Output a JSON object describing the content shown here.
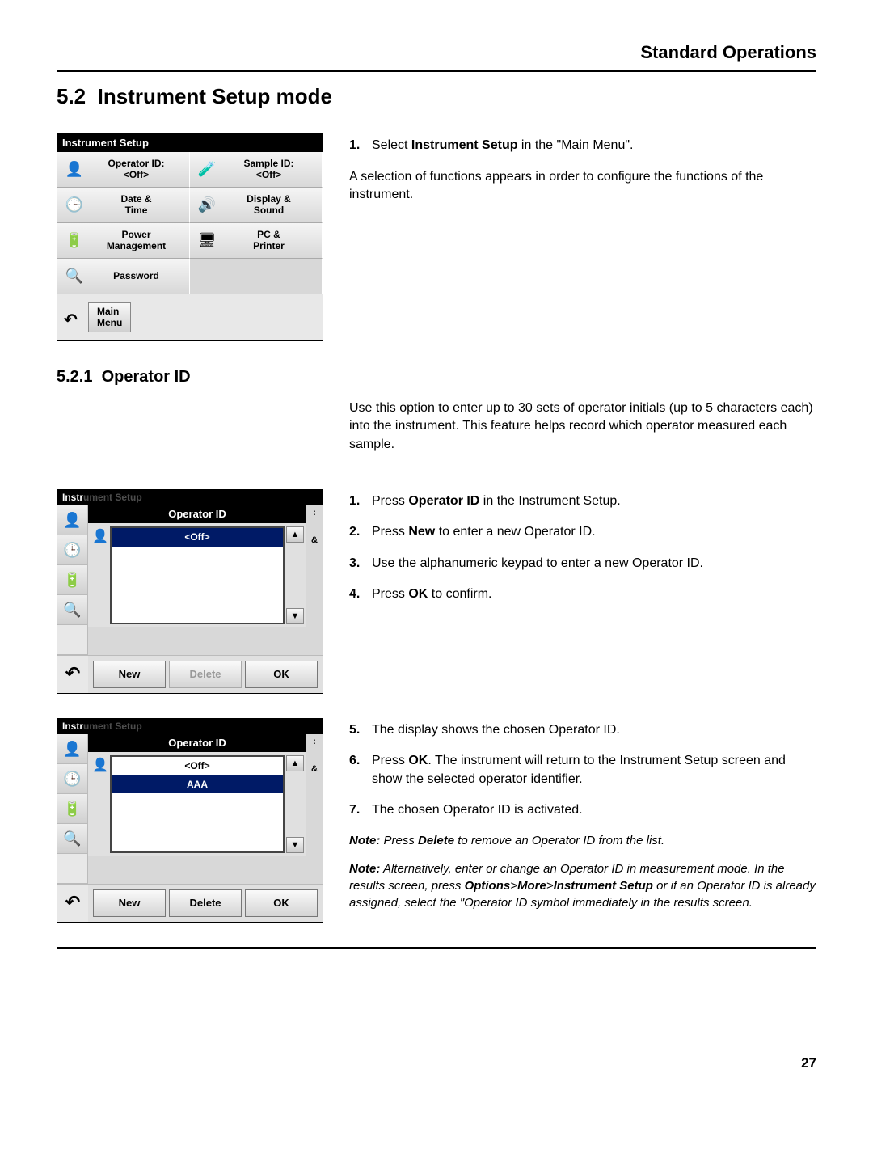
{
  "header": {
    "title": "Standard Operations"
  },
  "section": {
    "num": "5.2",
    "title": "Instrument Setup mode"
  },
  "subsection": {
    "num": "5.2.1",
    "title": "Operator ID"
  },
  "setup": {
    "scr_title": "Instrument Setup",
    "cells": [
      {
        "icon": "👤",
        "line1": "Operator ID:",
        "line2": "<Off>"
      },
      {
        "icon": "🧪",
        "line1": "Sample ID:",
        "line2": "<Off>"
      },
      {
        "icon": "🕒",
        "line1": "Date &",
        "line2": "Time"
      },
      {
        "icon": "🔊",
        "line1": "Display &",
        "line2": "Sound"
      },
      {
        "icon": "🔋",
        "line1": "Power",
        "line2": "Management"
      },
      {
        "icon": "🖥",
        "line1": "PC &",
        "line2": "Printer"
      },
      {
        "icon": "🔍",
        "line1": "Password",
        "line2": ""
      }
    ],
    "back_icon": "↶",
    "main_menu_l1": "Main",
    "main_menu_l2": "Menu"
  },
  "step1": {
    "prefix": "Select ",
    "bold": "Instrument Setup",
    "suffix": " in the \"Main Menu\"."
  },
  "para1": "A selection of functions appears in order to configure the functions of the instrument.",
  "intro": "Use this option to enter up to 30 sets of operator initials (up to 5 characters each) into the instrument. This feature helps record which operator measured each sample.",
  "dlg": {
    "frame_title_prefix": "Instr",
    "frame_title_rest": "ument Setup",
    "title": "Operator ID",
    "off_item": "<Off>",
    "aaa_item": "AAA",
    "new": "New",
    "delete": "Delete",
    "ok": "OK",
    "side_partial_top": ":",
    "side_partial_amp": "&",
    "avatar": "👤",
    "up": "▲",
    "down": "▼"
  },
  "side_icons": [
    "👤",
    "🕒",
    "🔋",
    "🔍"
  ],
  "steps_a": [
    {
      "n": "1.",
      "t1": "Press ",
      "b": "Operator ID",
      "t2": " in the Instrument Setup."
    },
    {
      "n": "2.",
      "t1": "Press ",
      "b": "New",
      "t2": " to enter a new Operator ID."
    },
    {
      "n": "3.",
      "t1": "Use the alphanumeric keypad to enter a new Operator ID.",
      "b": "",
      "t2": ""
    },
    {
      "n": "4.",
      "t1": "Press ",
      "b": "OK",
      "t2": " to confirm."
    }
  ],
  "steps_b": [
    {
      "n": "5.",
      "t1": "The display shows the chosen Operator ID.",
      "b": "",
      "t2": ""
    },
    {
      "n": "6.",
      "t1": "Press ",
      "b": "OK",
      "t2": ". The instrument will return to the Instrument Setup screen and show the selected operator identifier."
    },
    {
      "n": "7.",
      "t1": "The chosen Operator ID is activated.",
      "b": "",
      "t2": ""
    }
  ],
  "note1": {
    "label": "Note:",
    "pre": " Press ",
    "b": "Delete",
    "post": " to remove an Operator ID from the list."
  },
  "note2": {
    "label": "Note:",
    "pre": " Alternatively, enter or change an Operator ID in measurement mode. In the results screen, press ",
    "b1": "Options",
    "sep1": ">",
    "b2": "More",
    "sep2": ">",
    "b3": "Instrument Setup",
    "post": " or if an Operator ID is already assigned, select the \"Operator ID symbol immediately in the results screen."
  },
  "page": "27"
}
